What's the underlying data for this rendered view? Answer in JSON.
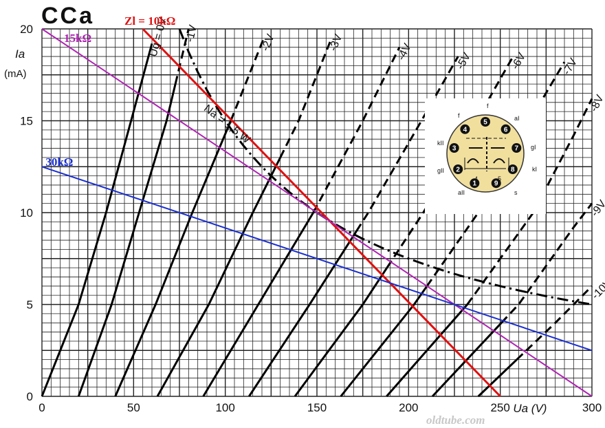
{
  "chart_data": {
    "type": "line",
    "title": "CCa",
    "xlabel": "Ua (V)",
    "ylabel": "Ia (mA)",
    "xlim": [
      0,
      300
    ],
    "ylim": [
      0,
      20
    ],
    "x_ticks": [
      0,
      50,
      100,
      150,
      200,
      250,
      300
    ],
    "y_ticks": [
      0,
      5,
      10,
      15,
      20
    ],
    "grid": true,
    "grid_step_x": 5,
    "grid_step_y": 0.5,
    "grid_ticks_x": [
      "0",
      "50",
      "100",
      "150",
      "200",
      "250",
      "300"
    ],
    "grid_ticks_y": [
      "0",
      "5",
      "10",
      "15",
      "20"
    ],
    "series": [
      {
        "name": "Ug = 0V",
        "style": "solid",
        "points": [
          [
            0,
            0
          ],
          [
            20,
            5
          ],
          [
            35,
            10
          ],
          [
            50,
            15.5
          ],
          [
            60,
            19.2
          ]
        ]
      },
      {
        "name": "-1V",
        "style": "solid-dashed",
        "dash_from": 17,
        "points": [
          [
            20,
            0
          ],
          [
            38,
            5
          ],
          [
            53,
            10
          ],
          [
            68,
            15
          ],
          [
            80,
            20
          ]
        ]
      },
      {
        "name": "-2V",
        "style": "solid-dashed",
        "dash_from": 15,
        "points": [
          [
            40,
            0
          ],
          [
            62,
            5
          ],
          [
            82,
            10
          ],
          [
            103,
            15
          ],
          [
            121,
            19.5
          ]
        ]
      },
      {
        "name": "-3V",
        "style": "solid-dashed",
        "dash_from": 13,
        "points": [
          [
            63,
            0
          ],
          [
            91,
            5
          ],
          [
            115,
            10
          ],
          [
            140,
            15
          ],
          [
            158,
            19.5
          ]
        ]
      },
      {
        "name": "-4V",
        "style": "solid-dashed",
        "dash_from": 10,
        "points": [
          [
            88,
            0
          ],
          [
            118,
            5
          ],
          [
            148,
            10
          ],
          [
            175,
            15
          ],
          [
            195,
            19
          ]
        ]
      },
      {
        "name": "-5V",
        "style": "solid-dashed",
        "dash_from": 9,
        "points": [
          [
            113,
            0
          ],
          [
            146,
            5
          ],
          [
            178,
            10
          ],
          [
            207,
            15
          ],
          [
            227,
            18.5
          ]
        ]
      },
      {
        "name": "-6V",
        "style": "solid-dashed",
        "dash_from": 7,
        "points": [
          [
            138,
            0
          ],
          [
            175,
            5
          ],
          [
            208,
            10
          ],
          [
            237,
            15
          ],
          [
            257,
            18.5
          ]
        ]
      },
      {
        "name": "-7V",
        "style": "solid-dashed",
        "dash_from": 6,
        "points": [
          [
            163,
            0
          ],
          [
            203,
            5
          ],
          [
            238,
            10
          ],
          [
            266,
            15
          ],
          [
            285,
            18.2
          ]
        ]
      },
      {
        "name": "-8V",
        "style": "solid-dashed",
        "dash_from": 5,
        "points": [
          [
            188,
            0
          ],
          [
            232,
            5
          ],
          [
            268,
            10
          ],
          [
            290,
            14.2
          ],
          [
            300,
            16.2
          ]
        ]
      },
      {
        "name": "-9V",
        "style": "solid-dashed",
        "dash_from": 4,
        "points": [
          [
            213,
            0
          ],
          [
            260,
            5
          ],
          [
            290,
            9.2
          ],
          [
            300,
            10.5
          ]
        ]
      },
      {
        "name": "-10V",
        "style": "solid-dashed",
        "dash_from": 2,
        "points": [
          [
            238,
            0
          ],
          [
            280,
            4
          ],
          [
            300,
            6
          ]
        ]
      }
    ],
    "max_dissipation": {
      "label": "Na = 1,5 W",
      "watts": 1.5,
      "x_from": 75,
      "x_to": 300
    },
    "load_lines": [
      {
        "name": "Zl = 10kΩ",
        "color": "#e01010",
        "points": [
          [
            55,
            20
          ],
          [
            250,
            0
          ]
        ]
      },
      {
        "name": "15kΩ",
        "color": "#b023b4",
        "points": [
          [
            0,
            20
          ],
          [
            300,
            0
          ]
        ]
      },
      {
        "name": "30kΩ",
        "color": "#1a2fd0",
        "points": [
          [
            0,
            12.5
          ],
          [
            300,
            2.5
          ]
        ]
      }
    ],
    "pinout": {
      "pins": [
        "1",
        "2",
        "3",
        "4",
        "5",
        "6",
        "7",
        "8",
        "9"
      ],
      "labels": {
        "top_left": "f",
        "top_mid": "f",
        "top_right": "aI",
        "left_upper": "kII",
        "right_upper": "gI",
        "left_lower": "gII",
        "right_lower": "kI",
        "bottom_left": "aII",
        "bottom_right": "s",
        "inner_left": "4",
        "inner_right": "5"
      }
    },
    "watermark": "oldtube.com"
  }
}
